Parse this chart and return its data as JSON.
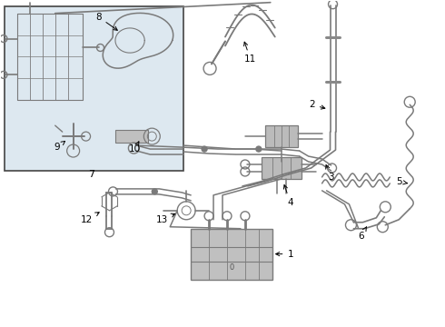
{
  "bg_color": "#ffffff",
  "line_color": "#7a7a7a",
  "text_color": "#000000",
  "inset_bg": "#dde8f0",
  "inset_border": "#444444",
  "lw_main": 1.1,
  "lw_thin": 0.7
}
